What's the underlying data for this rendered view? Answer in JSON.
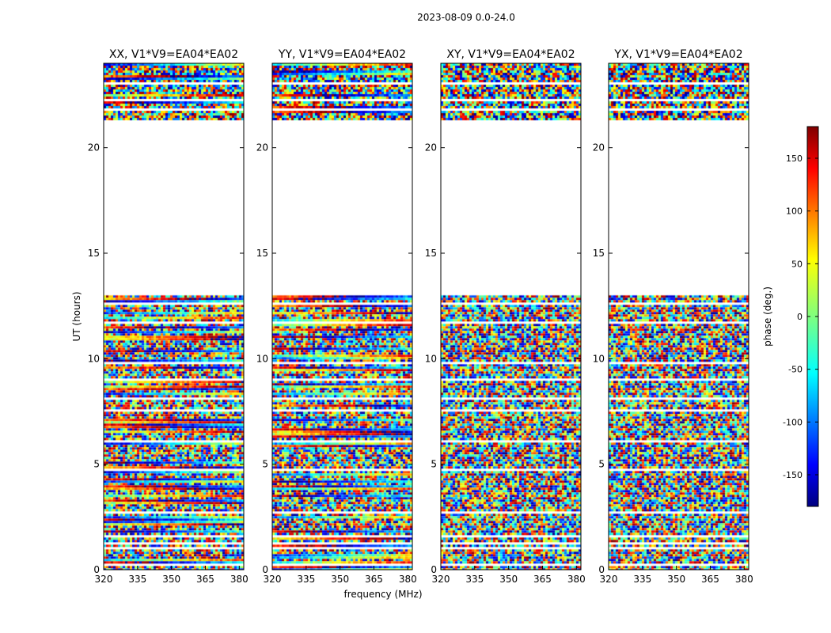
{
  "chart_data": {
    "type": "heatmap",
    "title": "2023-08-09 0.0-24.0",
    "xlabel": "frequency (MHz)",
    "ylabel": "UT (hours)",
    "xlim": [
      320,
      382
    ],
    "ylim": [
      0,
      24
    ],
    "xticks": [
      320,
      335,
      350,
      365,
      380
    ],
    "yticks": [
      0,
      5,
      10,
      15,
      20
    ],
    "panels": [
      {
        "name": "XX, V1*V9=EA04*EA02",
        "coherent": true
      },
      {
        "name": "YY, V1*V9=EA04*EA02",
        "coherent": true
      },
      {
        "name": "XY, V1*V9=EA04*EA02",
        "coherent": false
      },
      {
        "name": "YX, V1*V9=EA04*EA02",
        "coherent": false
      }
    ],
    "data_ranges_hours": [
      [
        0,
        13.0
      ],
      [
        21.4,
        24
      ]
    ],
    "blank_rows_hours": [
      0.3,
      1.05,
      1.3,
      1.6,
      2.8,
      3.6,
      4.8,
      5.3,
      6.1,
      7.6,
      8.2,
      9.1,
      9.8,
      11.8,
      12.7,
      21.9,
      22.3,
      23.1
    ],
    "colorbar": {
      "label": "phase (deg.)",
      "range": [
        -180,
        180
      ],
      "ticks": [
        -150,
        -100,
        -50,
        0,
        50,
        100,
        150
      ],
      "colormap": "jet"
    }
  }
}
